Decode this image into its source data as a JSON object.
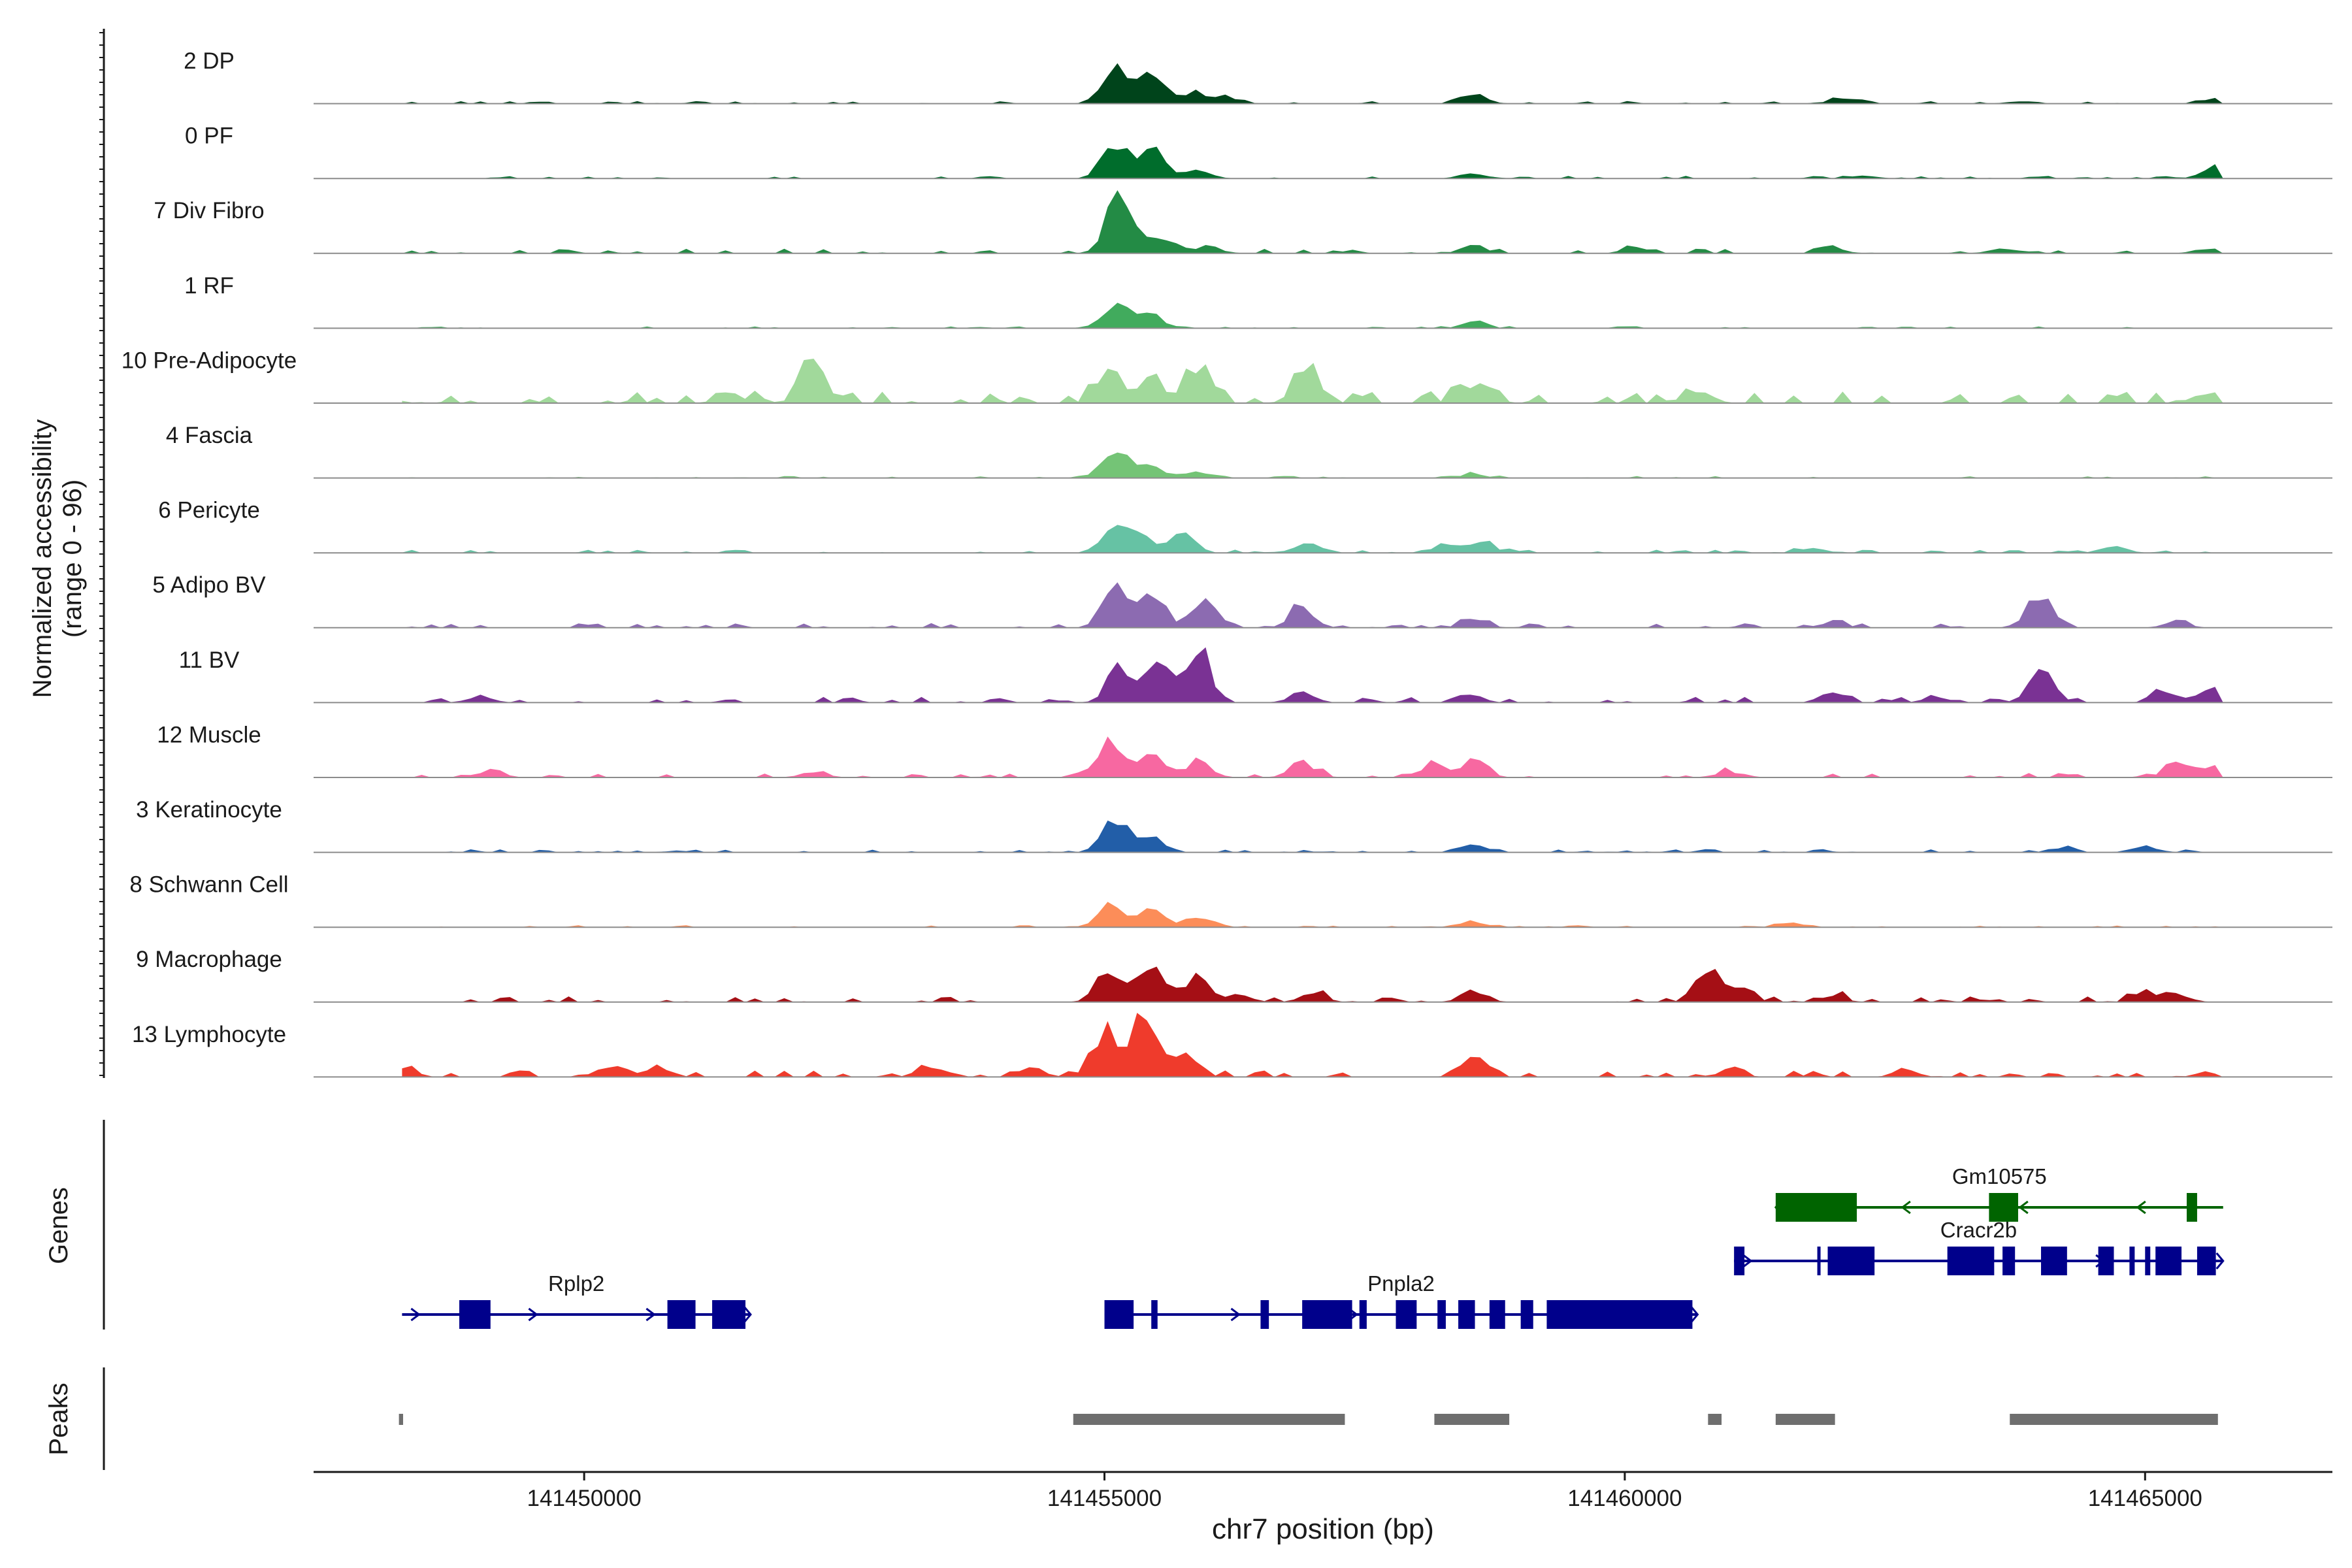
{
  "chart_data": {
    "type": "area",
    "panels": {
      "coverage_ylabel_line1": "Normalized accessibility",
      "coverage_ylabel_line2": "(range 0 - 96)",
      "genes_label": "Genes",
      "peaks_label": "Peaks"
    },
    "xlabel": "chr7 position (bp)",
    "xlim": [
      141447400,
      141466800
    ],
    "xticks": [
      {
        "value": 141450000,
        "label": "141450000"
      },
      {
        "value": 141455000,
        "label": "141455000"
      },
      {
        "value": 141460000,
        "label": "141460000"
      },
      {
        "value": 141465000,
        "label": "141465000"
      }
    ],
    "region_start": 141448250,
    "region_end": 141465750,
    "tracks": [
      {
        "name": "2 DP",
        "color": "#00441b",
        "peaks": [
          [
            141455100,
            0.62
          ],
          [
            141455450,
            0.45
          ],
          [
            141455850,
            0.18
          ],
          [
            141456200,
            0.1
          ],
          [
            141458550,
            0.12
          ],
          [
            141462100,
            0.08
          ],
          [
            141463800,
            0.04
          ],
          [
            141465650,
            0.07
          ]
        ],
        "noise": 0.04
      },
      {
        "name": "0 PF",
        "color": "#006d2c",
        "peaks": [
          [
            141455100,
            0.55
          ],
          [
            141455450,
            0.45
          ],
          [
            141455900,
            0.12
          ],
          [
            141458550,
            0.09
          ],
          [
            141462300,
            0.05
          ],
          [
            141465650,
            0.15
          ]
        ],
        "noise": 0.04
      },
      {
        "name": "7 Div Fibro",
        "color": "#238b45",
        "peaks": [
          [
            141455150,
            0.95
          ],
          [
            141455550,
            0.25
          ],
          [
            141456000,
            0.12
          ],
          [
            141458550,
            0.12
          ],
          [
            141460100,
            0.09
          ],
          [
            141462000,
            0.09
          ],
          [
            141463600,
            0.07
          ],
          [
            141465600,
            0.08
          ]
        ],
        "noise": 0.07
      },
      {
        "name": "1 RF",
        "color": "#41ab5d",
        "peaks": [
          [
            141455100,
            0.35
          ],
          [
            141455450,
            0.2
          ],
          [
            141458550,
            0.09
          ]
        ],
        "noise": 0.03
      },
      {
        "name": "10 Pre-Adipocyte",
        "color": "#a1d99b",
        "peaks": [
          [
            141452200,
            0.65
          ],
          [
            141455050,
            0.5
          ],
          [
            141455450,
            0.4
          ],
          [
            141455900,
            0.5
          ],
          [
            141456950,
            0.6
          ],
          [
            141458500,
            0.28
          ],
          [
            141451400,
            0.15
          ],
          [
            141460700,
            0.2
          ],
          [
            141465600,
            0.18
          ]
        ],
        "noise": 0.18
      },
      {
        "name": "4 Fascia",
        "color": "#74c476",
        "peaks": [
          [
            141455100,
            0.4
          ],
          [
            141455450,
            0.2
          ],
          [
            141455900,
            0.1
          ],
          [
            141458550,
            0.06
          ]
        ],
        "noise": 0.03
      },
      {
        "name": "6 Pericyte",
        "color": "#66c2a4",
        "peaks": [
          [
            141455100,
            0.4
          ],
          [
            141455350,
            0.3
          ],
          [
            141455750,
            0.25
          ],
          [
            141456950,
            0.15
          ],
          [
            141458300,
            0.16
          ],
          [
            141458650,
            0.14
          ],
          [
            141461800,
            0.08
          ],
          [
            141464700,
            0.1
          ]
        ],
        "noise": 0.05
      },
      {
        "name": "5 Adipo BV",
        "color": "#8c6bb1",
        "peaks": [
          [
            141455100,
            0.7
          ],
          [
            141455450,
            0.45
          ],
          [
            141455950,
            0.4
          ],
          [
            141456900,
            0.3
          ],
          [
            141458550,
            0.15
          ],
          [
            141464000,
            0.55
          ],
          [
            141462000,
            0.08
          ],
          [
            141465300,
            0.08
          ]
        ],
        "noise": 0.07
      },
      {
        "name": "11 BV",
        "color": "#7a3294",
        "peaks": [
          [
            141455150,
            0.55
          ],
          [
            141455500,
            0.55
          ],
          [
            141455900,
            0.8
          ],
          [
            141456900,
            0.15
          ],
          [
            141449000,
            0.1
          ],
          [
            141458500,
            0.12
          ],
          [
            141462000,
            0.15
          ],
          [
            141463000,
            0.1
          ],
          [
            141464000,
            0.48
          ],
          [
            141465200,
            0.18
          ],
          [
            141465650,
            0.25
          ]
        ],
        "noise": 0.09
      },
      {
        "name": "12 Muscle",
        "color": "#f768a1",
        "peaks": [
          [
            141455050,
            0.55
          ],
          [
            141455450,
            0.4
          ],
          [
            141455900,
            0.25
          ],
          [
            141456900,
            0.25
          ],
          [
            141458150,
            0.2
          ],
          [
            141458550,
            0.25
          ],
          [
            141449100,
            0.12
          ],
          [
            141452200,
            0.1
          ],
          [
            141461000,
            0.1
          ],
          [
            141465300,
            0.2
          ],
          [
            141465650,
            0.18
          ]
        ],
        "noise": 0.07
      },
      {
        "name": "3 Keratinocyte",
        "color": "#225ea8",
        "peaks": [
          [
            141455100,
            0.52
          ],
          [
            141455450,
            0.25
          ],
          [
            141458550,
            0.12
          ],
          [
            141465000,
            0.1
          ],
          [
            141464200,
            0.06
          ]
        ],
        "noise": 0.05
      },
      {
        "name": "8 Schwann Cell",
        "color": "#fc8d59",
        "peaks": [
          [
            141455050,
            0.32
          ],
          [
            141455450,
            0.25
          ],
          [
            141455900,
            0.18
          ],
          [
            141458550,
            0.08
          ],
          [
            141461600,
            0.06
          ]
        ],
        "noise": 0.03
      },
      {
        "name": "9 Macrophage",
        "color": "#a50f15",
        "peaks": [
          [
            141455050,
            0.55
          ],
          [
            141455450,
            0.5
          ],
          [
            141455900,
            0.3
          ],
          [
            141456300,
            0.12
          ],
          [
            141457000,
            0.14
          ],
          [
            141458550,
            0.18
          ],
          [
            141460800,
            0.55
          ],
          [
            141461100,
            0.2
          ],
          [
            141462000,
            0.1
          ],
          [
            141465000,
            0.12
          ],
          [
            141465300,
            0.14
          ]
        ],
        "noise": 0.09
      },
      {
        "name": "13 Lymphocyte",
        "color": "#ef3b2c",
        "peaks": [
          [
            141455000,
            0.7
          ],
          [
            141455400,
            1.0
          ],
          [
            141455800,
            0.3
          ],
          [
            141458550,
            0.38
          ],
          [
            141448250,
            0.14
          ],
          [
            141450250,
            0.16
          ],
          [
            141450700,
            0.16
          ],
          [
            141453300,
            0.14
          ],
          [
            141454300,
            0.14
          ],
          [
            141461000,
            0.1
          ],
          [
            141462700,
            0.1
          ],
          [
            141465600,
            0.08
          ]
        ],
        "noise": 0.1
      }
    ],
    "genes": [
      {
        "name": "Rplp2",
        "strand": "+",
        "row": 2,
        "color": "#00008b",
        "start": 141448250,
        "end": 141451600,
        "exons": [
          [
            141448800,
            141449100
          ],
          [
            141450800,
            141451070
          ],
          [
            141451230,
            141451550
          ]
        ]
      },
      {
        "name": "Pnpla2",
        "strand": "+",
        "row": 2,
        "color": "#00008b",
        "start": 141455000,
        "end": 141460700,
        "exons": [
          [
            141455000,
            141455280
          ],
          [
            141455450,
            141455510
          ],
          [
            141456500,
            141456580
          ],
          [
            141456900,
            141457380
          ],
          [
            141457450,
            141457520
          ],
          [
            141457800,
            141458000
          ],
          [
            141458200,
            141458280
          ],
          [
            141458400,
            141458560
          ],
          [
            141458700,
            141458850
          ],
          [
            141459000,
            141459120
          ],
          [
            141459250,
            141460650
          ]
        ]
      },
      {
        "name": "Cracr2b",
        "strand": "+",
        "row": 1,
        "color": "#00008b",
        "start": 141461050,
        "end": 141465750,
        "exons": [
          [
            141461050,
            141461150
          ],
          [
            141461850,
            141461870
          ],
          [
            141461950,
            141462400
          ],
          [
            141463100,
            141463550
          ],
          [
            141463630,
            141463750
          ],
          [
            141464000,
            141464250
          ],
          [
            141464550,
            141464700
          ],
          [
            141464850,
            141464900
          ],
          [
            141465000,
            141465050
          ],
          [
            141465100,
            141465350
          ],
          [
            141465500,
            141465680
          ]
        ]
      },
      {
        "name": "Gm10575",
        "strand": "-",
        "row": 0,
        "color": "#006400",
        "start": 141461450,
        "end": 141465750,
        "exons": [
          [
            141461450,
            141462230
          ],
          [
            141463500,
            141463780
          ],
          [
            141465400,
            141465500
          ]
        ]
      }
    ],
    "peak_regions": [
      [
        141448220,
        141448260
      ],
      [
        141454700,
        141457310
      ],
      [
        141458170,
        141458890
      ],
      [
        141460800,
        141460930
      ],
      [
        141461450,
        141462020
      ],
      [
        141463700,
        141465700
      ]
    ]
  }
}
